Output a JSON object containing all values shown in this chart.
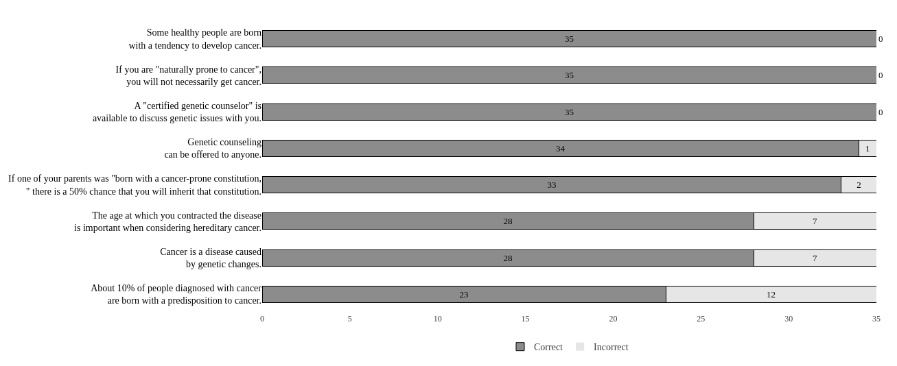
{
  "chart_data": {
    "type": "bar",
    "orientation": "horizontal",
    "stacked": true,
    "data_labels": true,
    "legend": "bottom",
    "categories": [
      "Some healthy people are born\nwith a tendency to develop cancer.",
      "If you are \"naturally prone to cancer\",\nyou will not necessarily get cancer.",
      "A \"certified genetic counselor\" is\navailable to discuss genetic issues with you.",
      "Genetic counseling\ncan be offered to anyone.",
      "If one of your parents was \"born with a cancer-prone constitution,\n\" there is a 50% chance that you will inherit that constitution.",
      "The age at which you contracted the disease\nis important when considering hereditary cancer.",
      "Cancer is a disease caused\nby genetic changes.",
      "About 10% of people diagnosed with cancer\nare born with a predisposition to cancer."
    ],
    "series": [
      {
        "name": "Correct",
        "color": "#8c8c8c",
        "values": [
          35,
          35,
          35,
          34,
          33,
          28,
          28,
          23
        ]
      },
      {
        "name": "Incorrect",
        "color": "#e6e6e6",
        "values": [
          0,
          0,
          0,
          1,
          2,
          7,
          7,
          12
        ]
      }
    ],
    "xlim": [
      0,
      35
    ],
    "xticks": [
      0,
      5,
      10,
      15,
      20,
      25,
      30,
      35
    ]
  }
}
